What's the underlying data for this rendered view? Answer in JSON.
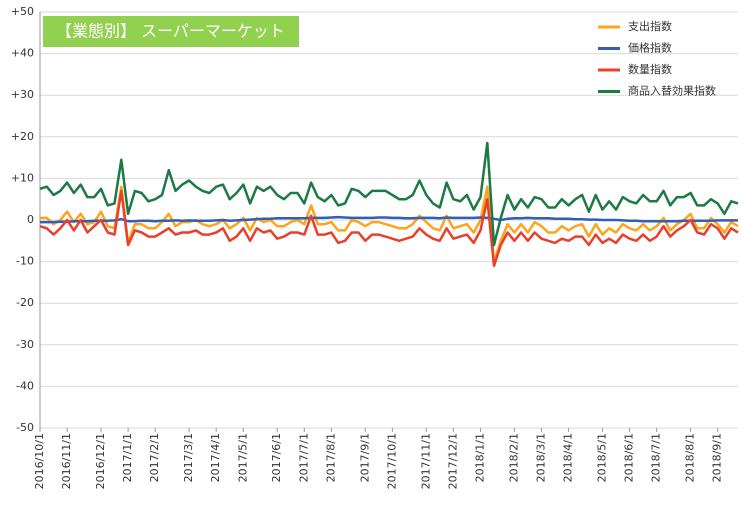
{
  "chart_data": {
    "type": "line",
    "title": "【業態別】 スーパーマーケット",
    "categories": [
      "2016/10/1",
      null,
      null,
      null,
      "2016/11/1",
      null,
      null,
      null,
      null,
      "2016/12/1",
      null,
      null,
      null,
      "2017/1/1",
      null,
      null,
      null,
      "2017/2/1",
      null,
      null,
      null,
      null,
      "2017/3/1",
      null,
      null,
      null,
      "2017/4/1",
      null,
      null,
      null,
      "2017/5/1",
      null,
      null,
      null,
      null,
      "2017/6/1",
      null,
      null,
      null,
      "2017/7/1",
      null,
      null,
      null,
      "2017/8/1",
      null,
      null,
      null,
      null,
      "2017/9/1",
      null,
      null,
      null,
      "2017/10/1",
      null,
      null,
      null,
      null,
      "2017/11/1",
      null,
      null,
      null,
      "2017/12/1",
      null,
      null,
      null,
      "2018/1/1",
      null,
      null,
      null,
      null,
      "2018/2/1",
      null,
      null,
      null,
      "2018/3/1",
      null,
      null,
      null,
      "2018/4/1",
      null,
      null,
      null,
      null,
      "2018/5/1",
      null,
      null,
      null,
      "2018/6/1",
      null,
      null,
      null,
      "2018/7/1",
      null,
      null,
      null,
      null,
      "2018/8/1",
      null,
      null,
      null,
      "2018/9/1",
      null,
      null,
      null
    ],
    "series": [
      {
        "name": "支出指数",
        "color": "#ffa31a",
        "values": [
          0.5,
          0.5,
          -1,
          0,
          2,
          -0.5,
          1.5,
          -1,
          -0.5,
          2,
          -1.5,
          -2,
          8,
          -5.5,
          -1,
          -1,
          -2,
          -2,
          -0.5,
          1.5,
          -1.5,
          -0.5,
          -0.5,
          0,
          -1,
          -1.5,
          -1,
          0,
          -2,
          -1,
          0.5,
          -2.5,
          0.5,
          -0.5,
          0,
          -1.5,
          -1.5,
          -0.5,
          0,
          -1,
          3.5,
          -1,
          -1,
          -0.5,
          -2.5,
          -2.5,
          0,
          -0.5,
          -1.5,
          -0.5,
          -0.5,
          -1,
          -1.5,
          -2,
          -2,
          -1,
          1,
          -0.5,
          -2,
          -2.5,
          1,
          -2,
          -1.5,
          -1,
          -3,
          0,
          8,
          -10,
          -5,
          -1,
          -3,
          -1,
          -3,
          -0.5,
          -1.5,
          -3,
          -3,
          -1.5,
          -2.5,
          -1.5,
          -1,
          -4,
          -1,
          -3.5,
          -2,
          -3,
          -1,
          -2,
          -2.5,
          -1,
          -2.5,
          -1.5,
          0.5,
          -2.5,
          -1,
          0,
          1.5,
          -2,
          -2,
          0.5,
          -1,
          -3,
          -0.5,
          -1.5
        ]
      },
      {
        "name": "価格指数",
        "color": "#2f5fb8",
        "values": [
          -0.5,
          -0.5,
          -0.5,
          -0.4,
          -0.4,
          -0.3,
          -0.3,
          -0.3,
          -0.2,
          -0.2,
          -0.2,
          -0.1,
          0.2,
          -0.3,
          -0.3,
          -0.2,
          -0.2,
          -0.3,
          -0.2,
          -0.2,
          -0.1,
          -0.2,
          -0.1,
          -0.2,
          -0.2,
          -0.2,
          -0.1,
          0,
          -0.2,
          -0.1,
          0,
          0.1,
          0.2,
          0.3,
          0.3,
          0.4,
          0.4,
          0.4,
          0.4,
          0.4,
          0.5,
          0.5,
          0.5,
          0.6,
          0.7,
          0.6,
          0.5,
          0.5,
          0.5,
          0.5,
          0.6,
          0.6,
          0.5,
          0.5,
          0.4,
          0.4,
          0.5,
          0.5,
          0.5,
          0.4,
          0.6,
          0.5,
          0.5,
          0.5,
          0.5,
          0.6,
          0.5,
          0.3,
          0,
          0.3,
          0.4,
          0.4,
          0.5,
          0.4,
          0.4,
          0.4,
          0.3,
          0.3,
          0.3,
          0.2,
          0.2,
          0.1,
          0.1,
          0,
          0,
          0,
          -0.1,
          -0.2,
          -0.2,
          -0.3,
          -0.3,
          -0.3,
          -0.3,
          -0.3,
          -0.3,
          -0.2,
          -0.2,
          -0.2,
          -0.2,
          -0.2,
          -0.1,
          -0.1,
          -0.1,
          -0.1
        ]
      },
      {
        "name": "数量指数",
        "color": "#e8402c",
        "values": [
          -1.5,
          -2,
          -3.5,
          -2,
          0,
          -2.5,
          0,
          -3,
          -1.5,
          0,
          -3,
          -3.5,
          7,
          -6,
          -2.5,
          -3,
          -4,
          -4,
          -3,
          -2,
          -3.5,
          -3,
          -3,
          -2.5,
          -3.5,
          -3.5,
          -3,
          -2,
          -5,
          -4,
          -2,
          -5,
          -2,
          -3,
          -2.5,
          -4.5,
          -4,
          -3,
          -3,
          -3.5,
          1,
          -3.5,
          -3.5,
          -3,
          -5.5,
          -5,
          -3,
          -3,
          -5,
          -3.5,
          -3.5,
          -4,
          -4.5,
          -5,
          -4.5,
          -4,
          -2,
          -3.5,
          -4.5,
          -5,
          -2,
          -4.5,
          -4,
          -3.5,
          -5.5,
          -2.5,
          5,
          -11,
          -6,
          -3,
          -5,
          -3,
          -5,
          -3,
          -4.5,
          -5,
          -5.5,
          -4.5,
          -5,
          -4,
          -4,
          -6,
          -3.5,
          -5.5,
          -4.5,
          -5.5,
          -3.5,
          -4.5,
          -5,
          -3.5,
          -5,
          -4,
          -1.5,
          -4,
          -2.5,
          -1.5,
          0,
          -3,
          -3.5,
          -1,
          -2,
          -4.5,
          -2,
          -3
        ]
      },
      {
        "name": "商品入替効果指数",
        "color": "#1d7a45",
        "values": [
          7.5,
          8,
          6,
          7,
          9,
          6.5,
          8.5,
          5.5,
          5.5,
          7.5,
          3.5,
          4,
          14.5,
          1.5,
          7,
          6.5,
          4.5,
          5,
          6,
          12,
          7,
          8.5,
          9.5,
          8,
          7,
          6.5,
          8,
          8.5,
          5,
          6.5,
          8.5,
          4,
          8,
          7,
          8,
          6,
          5,
          6.5,
          6.5,
          4,
          9,
          5.5,
          4.5,
          6,
          3.5,
          4,
          7.5,
          7,
          5.5,
          7,
          7,
          7,
          6,
          5,
          5,
          6,
          9.5,
          6,
          4,
          3,
          9,
          5,
          4.5,
          6,
          2.5,
          5.5,
          18.5,
          -6,
          0.5,
          6,
          2.5,
          5,
          3,
          5.5,
          5,
          3,
          3,
          5,
          3.5,
          5,
          6,
          2,
          6,
          2.5,
          4.5,
          2.5,
          5.5,
          4.5,
          4,
          6,
          4.5,
          4.5,
          7,
          3.5,
          5.5,
          5.5,
          6.5,
          3.5,
          3.5,
          5,
          4,
          1.5,
          4.5,
          4
        ]
      }
    ],
    "ylim": [
      -50,
      50
    ],
    "yticks": [
      {
        "value": 50,
        "label": "+50"
      },
      {
        "value": 40,
        "label": "+40"
      },
      {
        "value": 30,
        "label": "+30"
      },
      {
        "value": 20,
        "label": "+20"
      },
      {
        "value": 10,
        "label": "+10"
      },
      0,
      -10,
      -20,
      -30,
      -40,
      -50
    ],
    "grid": true,
    "legend": "upper right"
  }
}
